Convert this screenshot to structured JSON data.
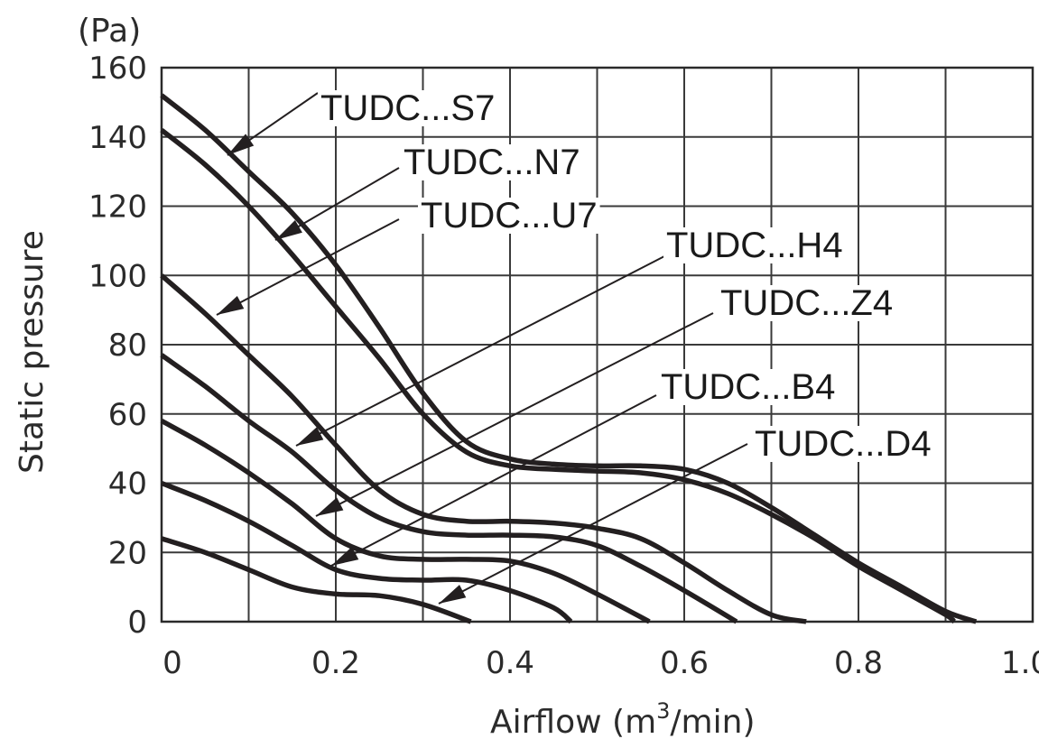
{
  "chart_data": {
    "type": "line",
    "unit_label": "(Pa)",
    "ylabel": "Static pressure",
    "xlabel_main": "Airflow (m",
    "xlabel_sup": "3",
    "xlabel_end": "/min)",
    "xlim": [
      0,
      1.0
    ],
    "ylim": [
      0,
      160
    ],
    "x_ticks": [
      "0",
      "0.2",
      "0.4",
      "0.6",
      "0.8",
      "1.0"
    ],
    "y_ticks": [
      "0",
      "20",
      "40",
      "60",
      "80",
      "100",
      "120",
      "140",
      "160"
    ],
    "grid": true,
    "series": [
      {
        "name": "TUDC...S7",
        "points": [
          [
            0,
            152
          ],
          [
            0.05,
            142
          ],
          [
            0.1,
            130
          ],
          [
            0.15,
            118
          ],
          [
            0.2,
            103
          ],
          [
            0.25,
            85
          ],
          [
            0.3,
            66
          ],
          [
            0.35,
            52
          ],
          [
            0.4,
            47
          ],
          [
            0.45,
            45.5
          ],
          [
            0.5,
            45
          ],
          [
            0.55,
            45
          ],
          [
            0.6,
            44
          ],
          [
            0.65,
            40
          ],
          [
            0.7,
            33
          ],
          [
            0.75,
            25
          ],
          [
            0.8,
            17
          ],
          [
            0.85,
            10
          ],
          [
            0.9,
            3
          ],
          [
            0.935,
            0
          ]
        ]
      },
      {
        "name": "TUDC...N7",
        "points": [
          [
            0,
            142
          ],
          [
            0.05,
            132
          ],
          [
            0.1,
            120
          ],
          [
            0.15,
            106
          ],
          [
            0.2,
            91
          ],
          [
            0.25,
            76
          ],
          [
            0.3,
            60
          ],
          [
            0.35,
            49
          ],
          [
            0.4,
            45
          ],
          [
            0.45,
            44
          ],
          [
            0.5,
            43.5
          ],
          [
            0.55,
            43
          ],
          [
            0.6,
            41
          ],
          [
            0.65,
            37
          ],
          [
            0.7,
            31
          ],
          [
            0.75,
            24
          ],
          [
            0.8,
            16
          ],
          [
            0.85,
            9
          ],
          [
            0.9,
            2
          ],
          [
            0.91,
            0
          ]
        ]
      },
      {
        "name": "TUDC...U7",
        "points": [
          [
            0,
            100
          ],
          [
            0.05,
            89
          ],
          [
            0.1,
            77
          ],
          [
            0.15,
            65
          ],
          [
            0.2,
            51
          ],
          [
            0.25,
            38
          ],
          [
            0.3,
            31
          ],
          [
            0.35,
            29
          ],
          [
            0.4,
            29
          ],
          [
            0.45,
            28.5
          ],
          [
            0.5,
            27
          ],
          [
            0.55,
            24
          ],
          [
            0.6,
            17
          ],
          [
            0.65,
            9
          ],
          [
            0.7,
            2
          ],
          [
            0.74,
            0
          ]
        ]
      },
      {
        "name": "TUDC...H4",
        "points": [
          [
            0,
            77
          ],
          [
            0.05,
            68
          ],
          [
            0.1,
            58
          ],
          [
            0.15,
            49
          ],
          [
            0.2,
            38
          ],
          [
            0.25,
            30
          ],
          [
            0.3,
            26
          ],
          [
            0.35,
            25
          ],
          [
            0.4,
            25
          ],
          [
            0.45,
            24.5
          ],
          [
            0.5,
            22
          ],
          [
            0.55,
            16
          ],
          [
            0.6,
            9
          ],
          [
            0.66,
            0
          ]
        ]
      },
      {
        "name": "TUDC...Z4",
        "points": [
          [
            0,
            58
          ],
          [
            0.05,
            51
          ],
          [
            0.1,
            43
          ],
          [
            0.15,
            34
          ],
          [
            0.2,
            24
          ],
          [
            0.25,
            19
          ],
          [
            0.3,
            18
          ],
          [
            0.35,
            18
          ],
          [
            0.4,
            17.5
          ],
          [
            0.45,
            14
          ],
          [
            0.5,
            8
          ],
          [
            0.56,
            0
          ]
        ]
      },
      {
        "name": "TUDC...B4",
        "points": [
          [
            0,
            40
          ],
          [
            0.05,
            35
          ],
          [
            0.1,
            29
          ],
          [
            0.15,
            22
          ],
          [
            0.2,
            15
          ],
          [
            0.25,
            12.5
          ],
          [
            0.3,
            12
          ],
          [
            0.35,
            12
          ],
          [
            0.4,
            9
          ],
          [
            0.45,
            4
          ],
          [
            0.47,
            0
          ]
        ]
      },
      {
        "name": "TUDC...D4",
        "points": [
          [
            0,
            24
          ],
          [
            0.05,
            20
          ],
          [
            0.1,
            15
          ],
          [
            0.15,
            10
          ],
          [
            0.2,
            8
          ],
          [
            0.25,
            7.5
          ],
          [
            0.3,
            5
          ],
          [
            0.355,
            0
          ]
        ]
      }
    ]
  }
}
